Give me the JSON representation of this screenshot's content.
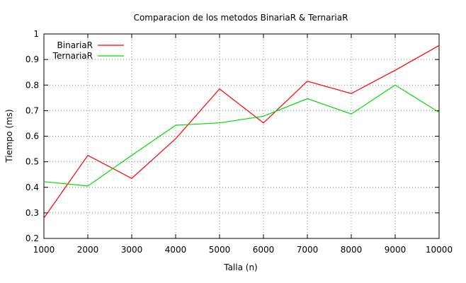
{
  "chart_data": {
    "type": "line",
    "title": "Comparacion de los metodos BinariaR & TernariaR",
    "xlabel": "Talla (n)",
    "ylabel": "Tiempo (ms)",
    "x": [
      1000,
      2000,
      3000,
      4000,
      5000,
      6000,
      7000,
      8000,
      9000,
      10000
    ],
    "xticks": [
      "1000",
      "2000",
      "3000",
      "4000",
      "5000",
      "6000",
      "7000",
      "8000",
      "9000",
      "10000"
    ],
    "yticks": [
      "0.2",
      "0.3",
      "0.4",
      "0.5",
      "0.6",
      "0.7",
      "0.8",
      "0.9",
      "1"
    ],
    "xlim": [
      1000,
      10000
    ],
    "ylim": [
      0.2,
      1.0
    ],
    "grid": true,
    "legend_position": "top-left",
    "series": [
      {
        "name": "BinariaR",
        "color": "#ff0000",
        "values": [
          0.28,
          0.525,
          0.435,
          0.59,
          0.785,
          0.652,
          0.815,
          0.767,
          0.858,
          0.955
        ]
      },
      {
        "name": "TernariaR",
        "color": "#00dd00",
        "values": [
          0.422,
          0.405,
          0.525,
          0.643,
          0.652,
          0.678,
          0.747,
          0.687,
          0.8,
          0.693
        ]
      }
    ]
  }
}
